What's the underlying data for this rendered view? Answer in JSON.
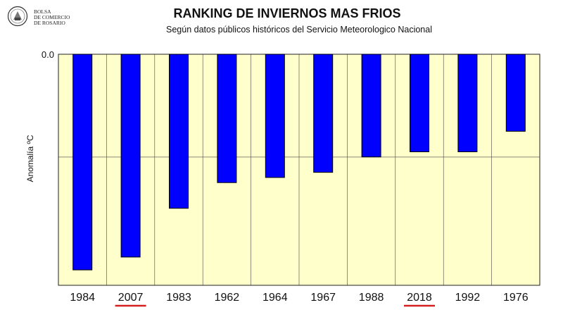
{
  "header": {
    "logo_lines": [
      "BOLSA",
      "DE COMERCIO",
      "DE ROSARIO"
    ],
    "title": "RANKING DE INVIERNOS MAS FRIOS",
    "subtitle": "Según datos públicos históricos del Servicio Meteorologico Nacional"
  },
  "chart_data": {
    "type": "bar",
    "categories": [
      "1984",
      "2007",
      "1983",
      "1962",
      "1964",
      "1967",
      "1988",
      "2018",
      "1992",
      "1976"
    ],
    "values": [
      -4.2,
      -3.95,
      -3.0,
      -2.5,
      -2.4,
      -2.3,
      -2.0,
      -1.9,
      -1.9,
      -1.5
    ],
    "highlighted_categories": [
      "2007",
      "2018"
    ],
    "highlight_color": "#d42020",
    "title": "RANKING DE INVIERNOS MAS FRIOS",
    "subtitle": "Según datos públicos históricos del Servicio Meteorologico Nacional",
    "xlabel": "",
    "ylabel": "Anomalía ºC",
    "y_tick_labels": [
      "0.0"
    ],
    "ylim": [
      -4.5,
      0
    ],
    "grid": true,
    "bar_color": "#0000ff",
    "plot_background": "#ffffcc"
  }
}
